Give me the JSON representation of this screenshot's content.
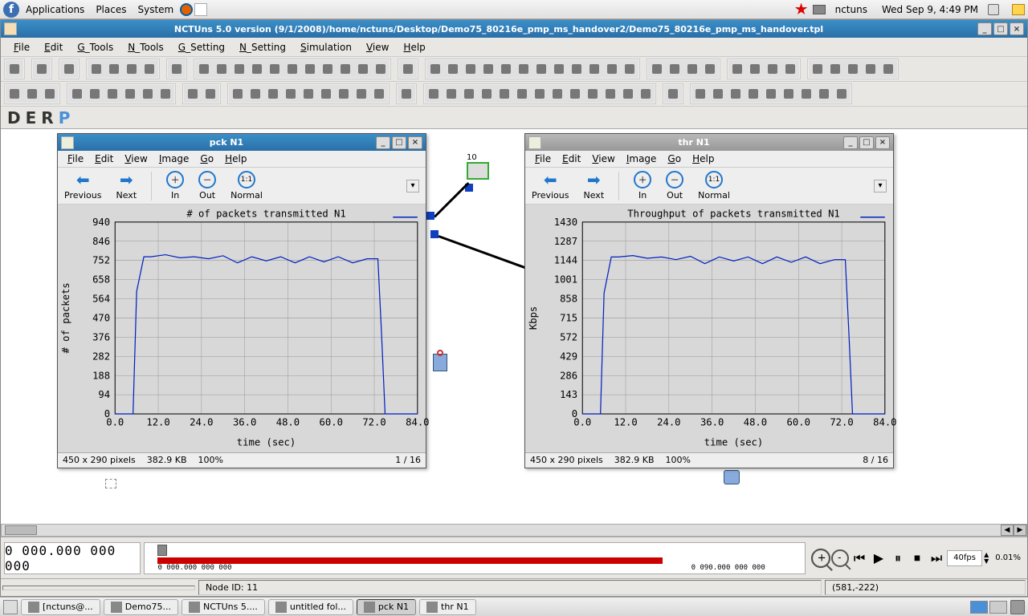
{
  "gnome": {
    "apps": "Applications",
    "places": "Places",
    "system": "System",
    "appname": "nctuns",
    "clock": "Wed Sep  9,  4:49 PM"
  },
  "app": {
    "title": "NCTUns 5.0 version (9/1/2008)/home/nctuns/Desktop/Demo75_80216e_pmp_ms_handover2/Demo75_80216e_pmp_ms_handover.tpl",
    "menus": {
      "file": "File",
      "edit": "Edit",
      "gtools": "G_Tools",
      "ntools": "N_Tools",
      "gsetting": "G_Setting",
      "nsetting": "N_Setting",
      "simulation": "Simulation",
      "view": "View",
      "help": "Help"
    },
    "modes": {
      "d": "D",
      "e": "E",
      "r": "R",
      "p": "P"
    },
    "time_counter": "0 000.000 000 000",
    "timeline": {
      "start": "0 000.000 000 000",
      "end": "0 090.000 000 000"
    },
    "playback": {
      "fps": "40fps",
      "pct": "0.01%"
    },
    "status": {
      "node": "Node ID: 11",
      "coords": "(581,-222)"
    },
    "node_label": "10"
  },
  "subwin_menus": {
    "file": "File",
    "edit": "Edit",
    "view": "View",
    "image": "Image",
    "go": "Go",
    "help": "Help"
  },
  "subwin_tb": {
    "prev": "Previous",
    "next": "Next",
    "in": "In",
    "out": "Out",
    "normal": "Normal"
  },
  "pck": {
    "title": "pck N1",
    "status": {
      "dims": "450 x 290 pixels",
      "size": "382.9 KB",
      "zoom": "100%",
      "page": "1 / 16"
    },
    "chart": {
      "type": "line",
      "title": "# of packets transmitted N1",
      "xlabel": "time (sec)",
      "ylabel": "# of packets",
      "xlim": [
        0,
        84
      ],
      "ylim": [
        0,
        940
      ],
      "xticks": [
        0,
        12,
        24,
        36,
        48,
        60,
        72,
        84
      ],
      "xtick_labels": [
        "0.0",
        "12.0",
        "24.0",
        "36.0",
        "48.0",
        "60.0",
        "72.0",
        "84.0"
      ],
      "yticks": [
        0,
        94,
        188,
        282,
        376,
        470,
        564,
        658,
        752,
        846,
        940
      ],
      "series_color": "#0020c0",
      "grid_color": "#999999",
      "bg_color": "#d8d8d8",
      "x": [
        0,
        5,
        6,
        8,
        10,
        14,
        18,
        22,
        26,
        30,
        34,
        38,
        42,
        46,
        50,
        54,
        58,
        62,
        66,
        70,
        73,
        74,
        75,
        84
      ],
      "y": [
        0,
        0,
        600,
        770,
        770,
        780,
        765,
        770,
        760,
        775,
        740,
        770,
        750,
        770,
        740,
        770,
        745,
        770,
        740,
        760,
        760,
        400,
        0,
        0
      ]
    }
  },
  "thr": {
    "title": "thr N1",
    "status": {
      "dims": "450 x 290 pixels",
      "size": "382.9 KB",
      "zoom": "100%",
      "page": "8 / 16"
    },
    "chart": {
      "type": "line",
      "title": "Throughput of packets transmitted N1",
      "xlabel": "time (sec)",
      "ylabel": "Kbps",
      "xlim": [
        0,
        84
      ],
      "ylim": [
        0,
        1430
      ],
      "xticks": [
        0,
        12,
        24,
        36,
        48,
        60,
        72,
        84
      ],
      "xtick_labels": [
        "0.0",
        "12.0",
        "24.0",
        "36.0",
        "48.0",
        "60.0",
        "72.0",
        "84.0"
      ],
      "yticks": [
        0,
        143,
        286,
        429,
        572,
        715,
        858,
        1001,
        1144,
        1287,
        1430
      ],
      "series_color": "#0020c0",
      "grid_color": "#999999",
      "bg_color": "#d8d8d8",
      "x": [
        0,
        5,
        6,
        8,
        10,
        14,
        18,
        22,
        26,
        30,
        34,
        38,
        42,
        46,
        50,
        54,
        58,
        62,
        66,
        70,
        73,
        74,
        75,
        84
      ],
      "y": [
        0,
        0,
        900,
        1170,
        1170,
        1180,
        1160,
        1170,
        1150,
        1175,
        1120,
        1170,
        1140,
        1170,
        1120,
        1170,
        1130,
        1170,
        1120,
        1150,
        1150,
        600,
        0,
        0
      ]
    }
  },
  "taskbar": {
    "items": [
      {
        "label": "[nctuns@...",
        "active": false
      },
      {
        "label": "Demo75...",
        "active": false
      },
      {
        "label": "NCTUns 5....",
        "active": false
      },
      {
        "label": "untitled fol...",
        "active": false
      },
      {
        "label": "pck N1",
        "active": true
      },
      {
        "label": "thr N1",
        "active": false
      }
    ]
  }
}
